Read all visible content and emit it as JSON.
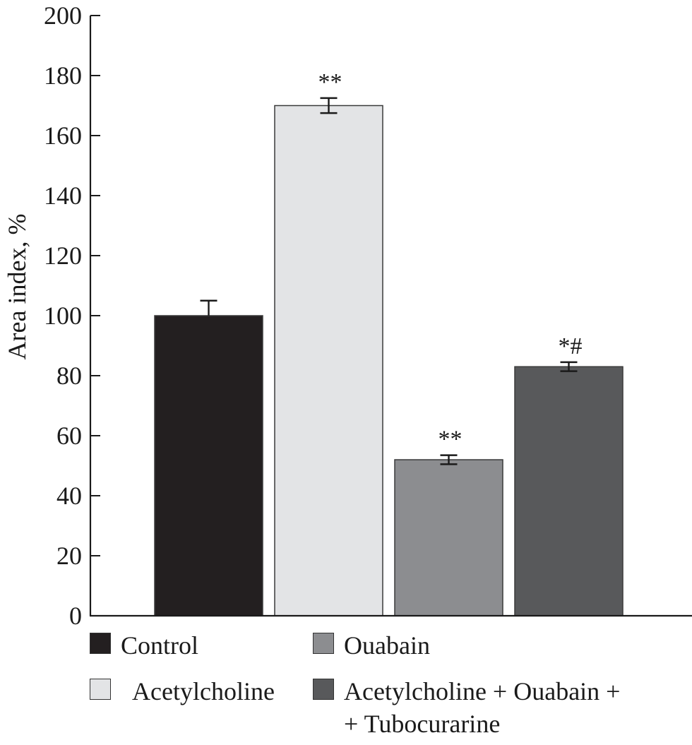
{
  "chart_data": {
    "type": "bar",
    "ylabel": "Area index, %",
    "ylim": [
      0,
      200
    ],
    "yticks": [
      0,
      20,
      40,
      60,
      80,
      100,
      120,
      140,
      160,
      180,
      200
    ],
    "grid": false,
    "legend_placement": "bottom",
    "categories": [
      "Control",
      "Acetylcholine",
      "Ouabain",
      "Acetylcholine + Ouabain + Tubocurarine"
    ],
    "values": [
      100,
      170,
      52,
      83
    ],
    "errors": [
      5,
      2.5,
      1.5,
      1.5
    ],
    "error_style": [
      "upper",
      "both",
      "both",
      "both"
    ],
    "annotations": [
      "",
      "**",
      "**",
      "*#"
    ],
    "colors": [
      "#231f20",
      "#e3e4e6",
      "#8c8d90",
      "#58595b"
    ],
    "legend": [
      {
        "label": "Control",
        "color": "#231f20"
      },
      {
        "label": "Ouabain",
        "color": "#8c8d90"
      },
      {
        "label": "Acetylcholine",
        "color": "#e3e4e6"
      },
      {
        "label": "Acetylcholine + Ouabain +\n+ Tubocurarine",
        "color": "#58595b"
      }
    ]
  }
}
